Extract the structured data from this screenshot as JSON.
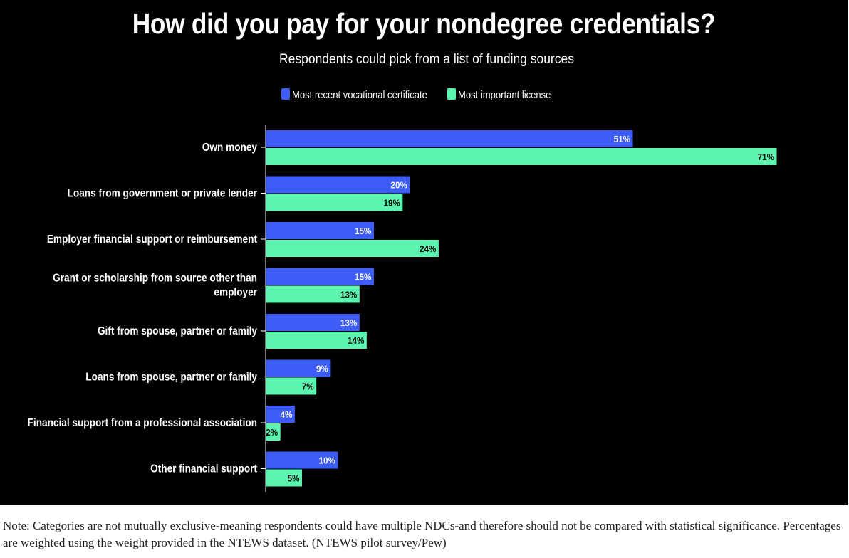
{
  "chart_data": {
    "type": "bar",
    "orientation": "horizontal",
    "title": "How did you pay for your nondegree credentials?",
    "subtitle": "Respondents could pick from a list of funding sources",
    "legend_position": "top-center",
    "categories": [
      "Own money",
      "Loans from government or private lender",
      "Employer financial support or reimbursement",
      "Grant or scholarship from source other than employer",
      "Gift from spouse, partner or family",
      "Loans from spouse, partner or family",
      "Financial support from a professional association",
      "Other financial support"
    ],
    "category_lines": [
      [
        "Own money"
      ],
      [
        "Loans from government or private lender"
      ],
      [
        "Employer financial support or reimbursement"
      ],
      [
        "Grant or scholarship from source other than",
        "employer"
      ],
      [
        "Gift from spouse, partner or family"
      ],
      [
        "Loans from spouse, partner or family"
      ],
      [
        "Financial support from a professional association"
      ],
      [
        "Other financial support"
      ]
    ],
    "series": [
      {
        "name": "Most recent vocational certificate",
        "color": "#3d5cf5",
        "values": [
          51,
          20,
          15,
          15,
          13,
          9,
          4,
          10
        ],
        "labels": [
          "51%",
          "20%",
          "15%",
          "15%",
          "13%",
          "9%",
          "4%",
          "10%"
        ]
      },
      {
        "name": "Most important license",
        "color": "#5cf5b0",
        "values": [
          71,
          19,
          24,
          13,
          14,
          7,
          2,
          5
        ],
        "labels": [
          "71%",
          "19%",
          "24%",
          "13%",
          "14%",
          "7%",
          "2%",
          "5%"
        ]
      }
    ],
    "xlim": [
      0,
      80
    ],
    "grid": false
  },
  "note": "Note: Categories are not mutually exclusive-meaning respondents could have multiple NDCs-and therefore should not be compared with statistical significance. Percentages are weighted using the weight provided in the NTEWS dataset. (NTEWS pilot survey/Pew)"
}
